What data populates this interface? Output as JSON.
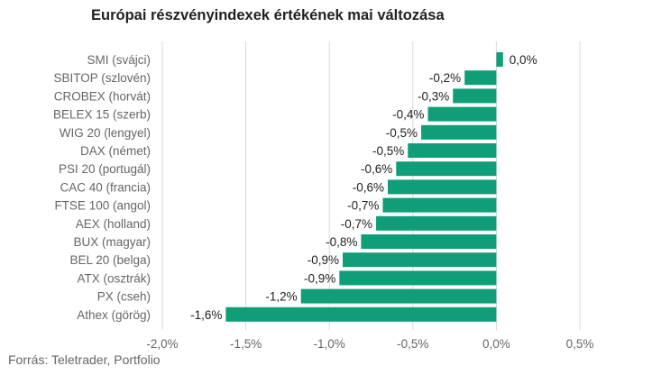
{
  "title": "Európai részvényindexek értékének mai változása",
  "source": "Forrás: Teletrader, Portfolio",
  "chart_data": {
    "type": "bar",
    "orientation": "horizontal",
    "title": "Európai részvényindexek értékének mai változása",
    "categories": [
      "SMI (svájci)",
      "SBITOP (szlovén)",
      "CROBEX (horvát)",
      "BELEX 15 (szerb)",
      "WIG 20 (lengyel)",
      "DAX (német)",
      "PSI 20 (portugál)",
      "CAC 40 (francia)",
      "FTSE 100 (angol)",
      "AEX (holland)",
      "BUX (magyar)",
      "BEL 20 (belga)",
      "ATX (osztrák)",
      "PX (cseh)",
      "Athex (görög)"
    ],
    "values": [
      0.04,
      -0.19,
      -0.26,
      -0.41,
      -0.45,
      -0.53,
      -0.6,
      -0.65,
      -0.68,
      -0.72,
      -0.81,
      -0.92,
      -0.94,
      -1.17,
      -1.62
    ],
    "value_labels": [
      "0,0%",
      "-0,2%",
      "-0,3%",
      "-0,4%",
      "-0,5%",
      "-0,5%",
      "-0,6%",
      "-0,6%",
      "-0,7%",
      "-0,7%",
      "-0,8%",
      "-0,9%",
      "-0,9%",
      "-1,2%",
      "-1,6%"
    ],
    "xlim": [
      -2.0,
      0.5
    ],
    "xticks": [
      -2.0,
      -1.5,
      -1.0,
      -0.5,
      0.0,
      0.5
    ],
    "xtick_labels": [
      "-2,0%",
      "-1,5%",
      "-1,0%",
      "-0,5%",
      "0,0%",
      "0,5%"
    ],
    "xlabel": "",
    "ylabel": "",
    "grid": "vertical",
    "legend": "none",
    "bar_color": "#0f9e78",
    "grid_color": "#d9d9d9"
  }
}
